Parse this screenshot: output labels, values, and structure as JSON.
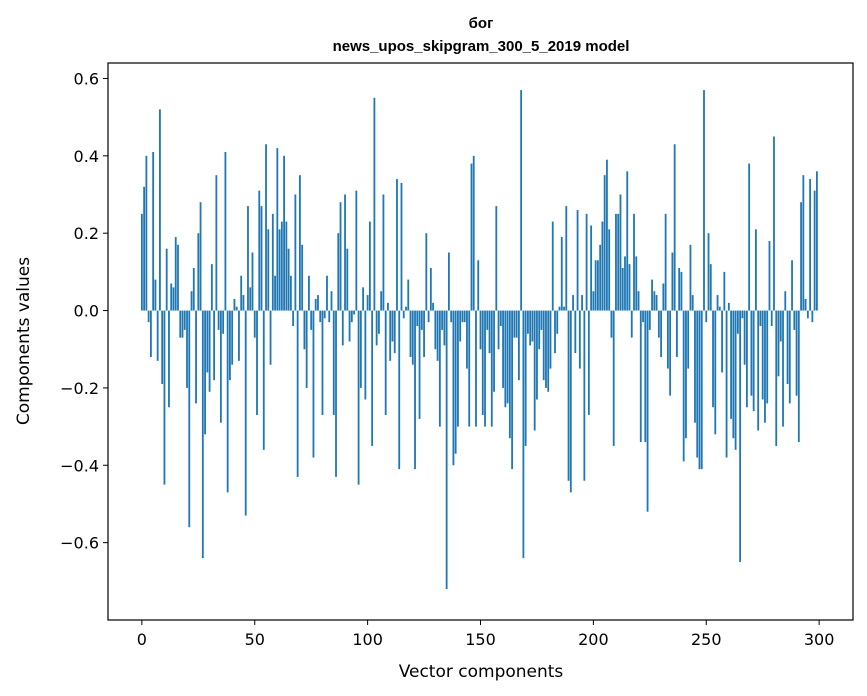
{
  "chart_data": {
    "type": "bar",
    "title": "бог",
    "subtitle": "news_upos_skipgram_300_5_2019 model",
    "xlabel": "Vector components",
    "ylabel": "Components values",
    "xlim": [
      -15,
      315
    ],
    "ylim": [
      -0.8,
      0.64
    ],
    "xticks": [
      0,
      50,
      100,
      150,
      200,
      250,
      300
    ],
    "yticks": [
      -0.6,
      -0.4,
      -0.2,
      0.0,
      0.2,
      0.4,
      0.6
    ],
    "ytick_labels": [
      "−0.6",
      "−0.4",
      "−0.2",
      "0.0",
      "0.2",
      "0.4",
      "0.6"
    ],
    "bar_color": "#1f77b4",
    "grid": false,
    "legend": false,
    "x_start": 0,
    "values": [
      0.25,
      0.32,
      0.4,
      -0.03,
      -0.12,
      0.41,
      0.08,
      -0.13,
      0.52,
      -0.19,
      -0.45,
      0.16,
      -0.25,
      0.07,
      0.06,
      0.19,
      0.17,
      -0.07,
      -0.07,
      -0.05,
      -0.2,
      -0.56,
      0.05,
      0.11,
      -0.24,
      0.2,
      0.28,
      -0.64,
      -0.32,
      -0.16,
      -0.21,
      0.12,
      -0.18,
      0.35,
      -0.05,
      -0.29,
      -0.06,
      0.41,
      -0.47,
      -0.18,
      -0.14,
      0.03,
      0.01,
      -0.13,
      0.09,
      0.04,
      -0.53,
      0.27,
      0.06,
      0.15,
      -0.07,
      -0.27,
      0.31,
      0.27,
      -0.36,
      0.43,
      0.21,
      -0.14,
      0.25,
      0.09,
      0.42,
      0.21,
      0.23,
      0.4,
      0.23,
      0.16,
      0.09,
      -0.04,
      0.3,
      -0.43,
      0.35,
      0.17,
      -0.1,
      -0.2,
      0.09,
      -0.05,
      -0.38,
      0.03,
      0.04,
      -0.03,
      -0.27,
      -0.02,
      0.09,
      -0.03,
      0.05,
      -0.27,
      -0.43,
      0.2,
      0.28,
      -0.09,
      0.3,
      0.16,
      -0.08,
      -0.03,
      -0.01,
      0.31,
      -0.45,
      -0.2,
      0.06,
      -0.23,
      0.04,
      0.23,
      -0.35,
      0.55,
      -0.09,
      -0.06,
      0.05,
      0.3,
      -0.27,
      0.02,
      -0.13,
      -0.08,
      -0.11,
      0.34,
      -0.41,
      0.33,
      -0.02,
      0.01,
      0.08,
      -0.12,
      -0.14,
      -0.41,
      -0.04,
      -0.28,
      -0.05,
      -0.12,
      0.2,
      -0.03,
      0.11,
      0.02,
      -0.1,
      -0.13,
      -0.3,
      -0.05,
      -0.09,
      -0.72,
      0.15,
      -0.03,
      -0.4,
      -0.37,
      -0.3,
      -0.08,
      -0.03,
      -0.03,
      -0.15,
      -0.3,
      0.38,
      0.4,
      -0.3,
      0.13,
      -0.1,
      -0.27,
      -0.3,
      -0.05,
      -0.11,
      -0.3,
      -0.21,
      0.27,
      -0.1,
      -0.04,
      -0.2,
      -0.25,
      -0.24,
      -0.33,
      -0.41,
      -0.07,
      -0.07,
      -0.18,
      0.57,
      -0.64,
      -0.35,
      -0.06,
      -0.09,
      -0.08,
      -0.31,
      -0.23,
      -0.1,
      -0.05,
      -0.18,
      -0.2,
      -0.21,
      -0.15,
      0.23,
      -0.11,
      -0.06,
      0.01,
      0.19,
      0.01,
      0.27,
      -0.44,
      -0.47,
      0.04,
      -0.11,
      0.26,
      -0.15,
      0.04,
      -0.44,
      0.25,
      -0.27,
      0.22,
      0.05,
      0.13,
      0.13,
      0.17,
      0.23,
      0.35,
      0.39,
      0.21,
      -0.07,
      -0.35,
      0.25,
      0.25,
      0.3,
      0.11,
      0.14,
      0.36,
      0.12,
      -0.07,
      0.25,
      0.14,
      0.05,
      -0.34,
      -0.03,
      -0.34,
      -0.52,
      -0.05,
      0.08,
      0.05,
      0.04,
      -0.07,
      -0.12,
      0.07,
      0.25,
      -0.15,
      -0.22,
      0.15,
      0.43,
      -0.12,
      0.11,
      0.1,
      -0.39,
      -0.33,
      -0.15,
      0.17,
      0.04,
      -0.29,
      -0.38,
      -0.41,
      -0.41,
      0.57,
      -0.03,
      0.2,
      0.12,
      -0.25,
      -0.32,
      0.04,
      0.01,
      -0.16,
      0.1,
      -0.38,
      0.02,
      -0.28,
      -0.33,
      -0.36,
      -0.06,
      -0.65,
      -0.02,
      -0.14,
      -0.25,
      0.38,
      -0.22,
      -0.26,
      0.21,
      -0.31,
      -0.04,
      -0.23,
      -0.29,
      -0.24,
      0.18,
      -0.04,
      0.45,
      -0.35,
      -0.17,
      -0.08,
      -0.3,
      0.05,
      -0.19,
      -0.24,
      0.13,
      -0.05,
      -0.22,
      -0.34,
      0.28,
      0.35,
      0.03,
      -0.02,
      0.34,
      -0.03,
      0.31,
      0.36
    ]
  }
}
